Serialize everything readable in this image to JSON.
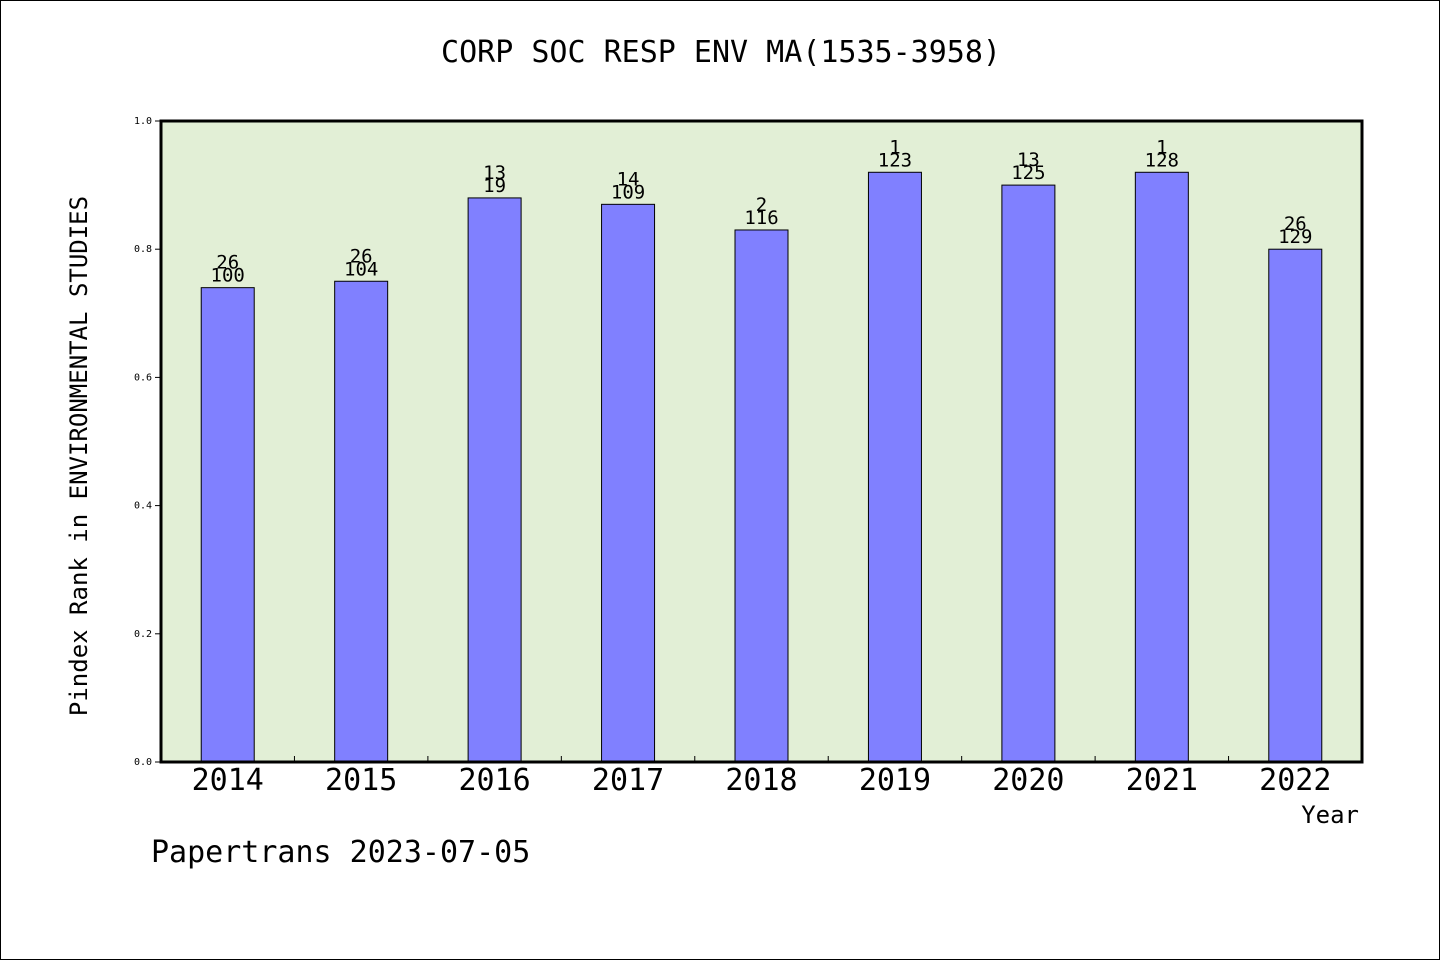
{
  "title": "CORP SOC RESP ENV MA(1535-3958)",
  "footer": "Papertrans 2023-07-05",
  "colors": {
    "plot_background": "#e2efd6",
    "bar_fill": "#8080ff",
    "bar_stroke": "#000000"
  },
  "chart_data": {
    "type": "bar",
    "title": "CORP SOC RESP ENV MA(1535-3958)",
    "xlabel": "Year",
    "ylabel": "Pindex Rank in ENVIRONMENTAL STUDIES",
    "ylim": [
      0,
      1.0
    ],
    "yticks": [
      "0.0",
      "0.2",
      "0.4",
      "0.6",
      "0.8",
      "1.0"
    ],
    "categories": [
      "2014",
      "2015",
      "2016",
      "2017",
      "2018",
      "2019",
      "2020",
      "2021",
      "2022"
    ],
    "values": [
      0.74,
      0.75,
      0.88,
      0.87,
      0.83,
      0.92,
      0.9,
      0.92,
      0.8
    ],
    "label_top": [
      "26",
      "26",
      "13",
      "14",
      "2",
      "1",
      "13",
      "1",
      "26"
    ],
    "label_bottom": [
      "100",
      "104",
      "19",
      "109",
      "116",
      "123",
      "125",
      "128",
      "129"
    ],
    "grid": false
  }
}
